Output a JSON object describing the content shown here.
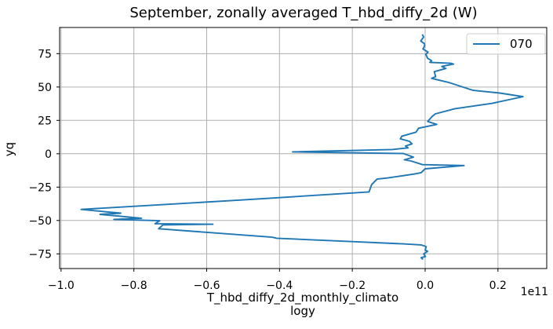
{
  "chart_data": {
    "type": "line",
    "title": "September, zonally averaged T_hbd_diffy_2d (W)",
    "xlabel": "T_hbd_diffy_2d_monthly_climatology",
    "xlabel_lines": [
      "T_hbd_diffy_2d_monthly_climato",
      "logy"
    ],
    "ylabel": "yq",
    "offset_text": "1e11",
    "grid": true,
    "xlim": [
      -1.004,
      0.334
    ],
    "ylim": [
      -86.0,
      94.6
    ],
    "xticks": {
      "values": [
        -1.0,
        -0.8,
        -0.6,
        -0.4,
        -0.2,
        0.0,
        0.2
      ],
      "labels": [
        "−1.0",
        "−0.8",
        "−0.6",
        "−0.4",
        "−0.2",
        "0.0",
        "0.2"
      ]
    },
    "yticks": {
      "values": [
        75,
        50,
        25,
        0,
        -25,
        -50,
        -75
      ],
      "labels": [
        "75",
        "50",
        "25",
        "0",
        "−25",
        "−50",
        "−75"
      ]
    },
    "colors": {
      "line": "#1f77b4",
      "grid": "#b0b0b0",
      "spine": "#000000",
      "legend_border": "#cccccc",
      "background": "#ffffff"
    },
    "legend": {
      "position": "upper right",
      "entries": [
        {
          "label": "070",
          "color": "#1f77b4"
        }
      ]
    },
    "series": [
      {
        "name": "070",
        "color": "#1f77b4",
        "x_unit": "1e11 W",
        "points": [
          [
            -0.007,
            89.0
          ],
          [
            -0.004,
            87.5
          ],
          [
            -0.012,
            84.5
          ],
          [
            -0.002,
            82.5
          ],
          [
            -0.001,
            81.0
          ],
          [
            -0.006,
            78.5
          ],
          [
            0.008,
            76.2
          ],
          [
            0.002,
            74.5
          ],
          [
            0.007,
            71.5
          ],
          [
            0.018,
            69.7
          ],
          [
            0.013,
            68.5
          ],
          [
            0.071,
            67.8
          ],
          [
            0.078,
            67.2
          ],
          [
            0.046,
            65.4
          ],
          [
            0.057,
            63.9
          ],
          [
            0.025,
            61.5
          ],
          [
            0.029,
            57.8
          ],
          [
            0.018,
            56.5
          ],
          [
            0.064,
            53.5
          ],
          [
            0.132,
            47.5
          ],
          [
            0.205,
            45.5
          ],
          [
            0.269,
            42.8
          ],
          [
            0.235,
            40.8
          ],
          [
            0.183,
            37.7
          ],
          [
            0.082,
            33.8
          ],
          [
            0.028,
            29.9
          ],
          [
            0.019,
            27.9
          ],
          [
            0.007,
            24.2
          ],
          [
            0.032,
            22.0
          ],
          [
            -0.018,
            19.1
          ],
          [
            -0.025,
            16.2
          ],
          [
            -0.064,
            13.2
          ],
          [
            -0.068,
            11.2
          ],
          [
            -0.043,
            9.3
          ],
          [
            -0.036,
            7.4
          ],
          [
            -0.054,
            5.8
          ],
          [
            -0.047,
            4.4
          ],
          [
            -0.09,
            3.2
          ],
          [
            -0.364,
            1.4
          ],
          [
            -0.06,
            0.2
          ],
          [
            -0.032,
            -2.5
          ],
          [
            -0.057,
            -4.5
          ],
          [
            -0.039,
            -5.4
          ],
          [
            -0.007,
            -8.2
          ],
          [
            0.107,
            -8.8
          ],
          [
            0.0,
            -11.3
          ],
          [
            -0.004,
            -12.3
          ],
          [
            -0.011,
            -14.2
          ],
          [
            -0.029,
            -15.2
          ],
          [
            -0.104,
            -18.2
          ],
          [
            -0.132,
            -19.0
          ],
          [
            -0.147,
            -23.1
          ],
          [
            -0.154,
            -28.6
          ],
          [
            -0.5,
            -34.6
          ],
          [
            -0.945,
            -41.7
          ],
          [
            -0.836,
            -44.5
          ],
          [
            -0.893,
            -45.4
          ],
          [
            -0.779,
            -48.3
          ],
          [
            -0.855,
            -49.2
          ],
          [
            -0.729,
            -50.2
          ],
          [
            -0.742,
            -52.4
          ],
          [
            -0.583,
            -52.8
          ],
          [
            -0.72,
            -53.3
          ],
          [
            -0.732,
            -56.2
          ],
          [
            -0.42,
            -62.5
          ],
          [
            -0.408,
            -63.3
          ],
          [
            -0.2,
            -65.8
          ],
          [
            -0.06,
            -67.5
          ],
          [
            -0.011,
            -68.3
          ],
          [
            0.003,
            -69.6
          ],
          [
            0.0,
            -72.1
          ],
          [
            0.007,
            -73.1
          ],
          [
            -0.004,
            -75.0
          ],
          [
            0.001,
            -77.0
          ],
          [
            -0.011,
            -77.9
          ],
          [
            -0.007,
            -78.9
          ]
        ]
      }
    ]
  }
}
